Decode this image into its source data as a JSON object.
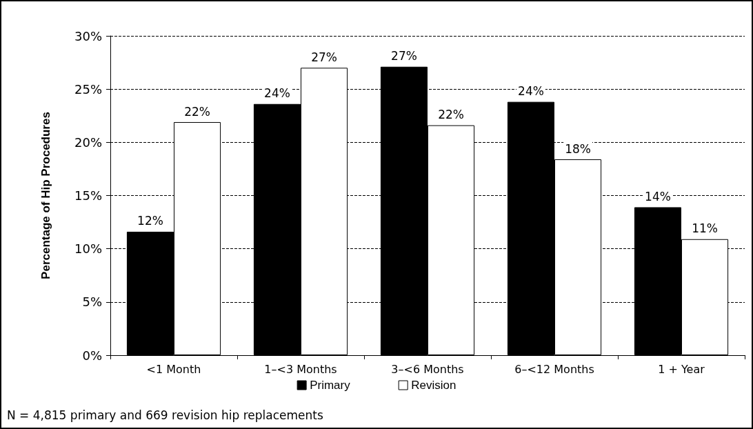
{
  "chart_data": {
    "type": "bar",
    "ylabel": "Percentage of Hip Procedures",
    "categories": [
      "<1 Month",
      "1–<3 Months",
      "3–<6 Months",
      "6–<12 Months",
      "1 + Year"
    ],
    "series": [
      {
        "name": "Primary",
        "color": "#000000",
        "values": [
          11.6,
          23.6,
          27.1,
          23.8,
          13.9
        ],
        "value_labels": [
          "12%",
          "24%",
          "27%",
          "24%",
          "14%"
        ]
      },
      {
        "name": "Revision",
        "color": "#ffffff",
        "values": [
          21.9,
          27.0,
          21.6,
          18.4,
          10.9
        ],
        "value_labels": [
          "22%",
          "27%",
          "22%",
          "18%",
          "11%"
        ]
      }
    ],
    "ylim": [
      0,
      30
    ],
    "yticks": [
      {
        "value": 0,
        "label": "0%"
      },
      {
        "value": 5,
        "label": "5%"
      },
      {
        "value": 10,
        "label": "10%"
      },
      {
        "value": 15,
        "label": "15%"
      },
      {
        "value": 20,
        "label": "20%"
      },
      {
        "value": 25,
        "label": "25%"
      },
      {
        "value": 30,
        "label": "30%"
      }
    ],
    "grid": "y",
    "legend": "bottom",
    "annotations": [
      "N = 4,815 primary and 669 revision hip replacements"
    ]
  }
}
